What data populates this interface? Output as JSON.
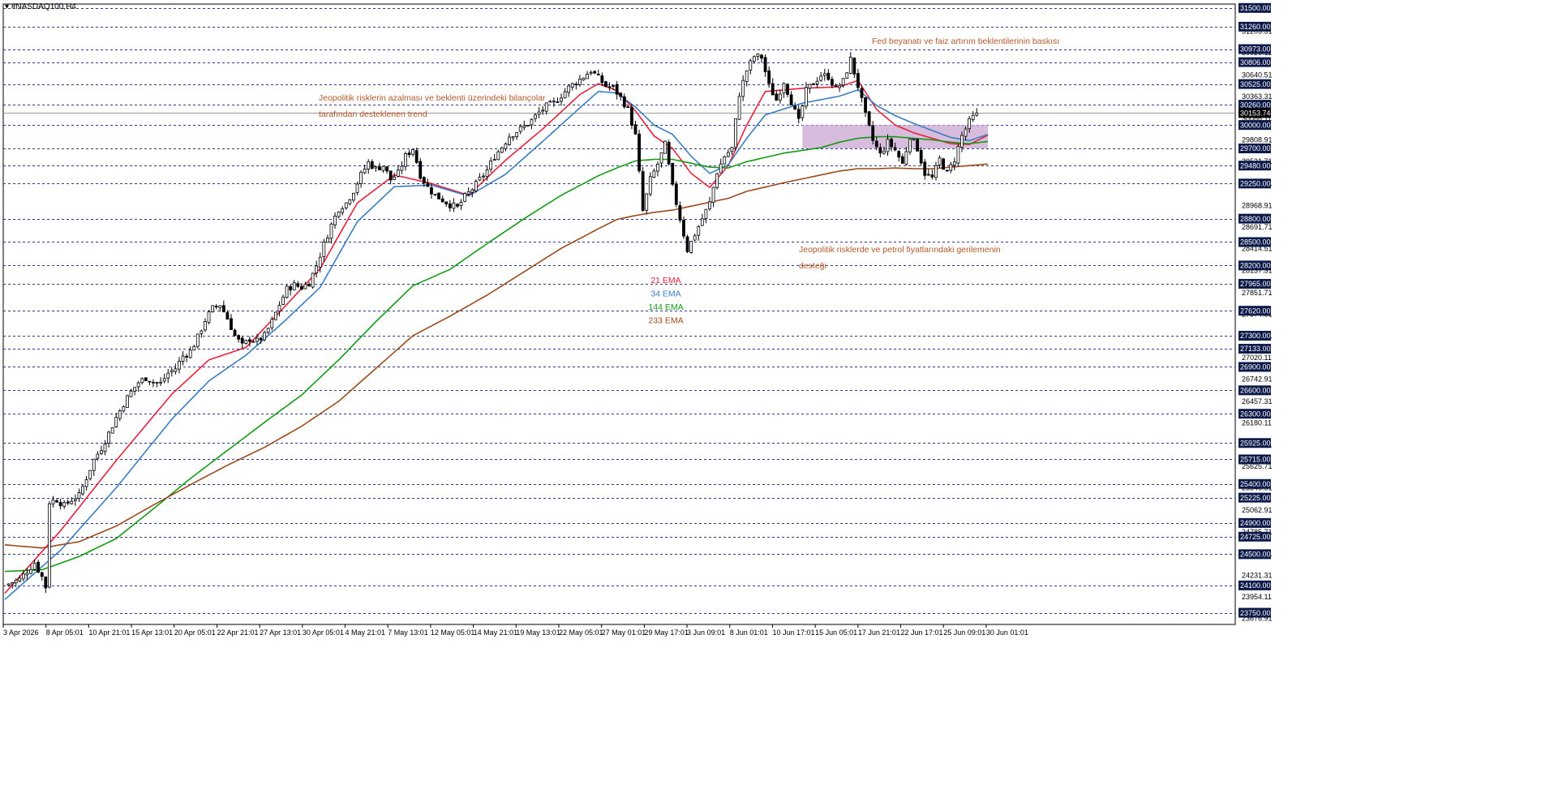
{
  "window": {
    "symbol_label": "#NASDAQ100,H4"
  },
  "colors": {
    "candle": "#000000",
    "ema21": "#e8203c",
    "ema34": "#3a7dc0",
    "ema144": "#139a13",
    "ema233": "#9c4a1c",
    "grid": "#2a3a8a",
    "zone": "#c9a6d3",
    "annotation": "#b5572a",
    "price_label_bg": "#0c1a4a",
    "price_label_text": "#ffffff"
  },
  "chart_data": {
    "type": "candlestick",
    "title": "",
    "xlabel": "",
    "ylabel": "",
    "ylim": [
      23600,
      31550
    ],
    "grid": "dashed horizontal lines at marked levels",
    "y_axis_ticks": [
      "31203.31",
      "30926.11",
      "30640.51",
      "30363.31",
      "30086.11",
      "29808.91",
      "29531.71",
      "29254.51",
      "28968.91",
      "28691.71",
      "28414.51",
      "28137.31",
      "27851.71",
      "27574.51",
      "27297.31",
      "27020.11",
      "26742.91",
      "26457.31",
      "26180.11",
      "25902.91",
      "25625.71",
      "25348.51",
      "25062.91",
      "24785.71",
      "24508.51",
      "24231.31",
      "23954.11",
      "23676.91"
    ],
    "marked_levels": [
      "31500.00",
      "31260.00",
      "30973.00",
      "30806.00",
      "30525.00",
      "30260.00",
      "30000.00",
      "29700.00",
      "29480.00",
      "29250.00",
      "28800.00",
      "28500.00",
      "28200.00",
      "27965.00",
      "27620.00",
      "27300.00",
      "27133.00",
      "26900.00",
      "26600.00",
      "26300.00",
      "25925.00",
      "25715.00",
      "25400.00",
      "25225.00",
      "24900.00",
      "24725.00",
      "24500.00",
      "24100.00",
      "23750.00"
    ],
    "current_price": "30153.74",
    "current_price_value": 30153.74,
    "x_ticks": [
      "3 Apr 2026",
      "8 Apr 05:01",
      "10 Apr 21:01",
      "15 Apr 13:01",
      "20 Apr 05:01",
      "22 Apr 21:01",
      "27 Apr 13:01",
      "30 Apr 05:01",
      "4 May 21:01",
      "7 May 13:01",
      "12 May 05:01",
      "14 May 21:01",
      "19 May 13:01",
      "22 May 05:01",
      "27 May 01:01",
      "29 May 17:01",
      "3 Jun 09:01",
      "8 Jun 01:01",
      "10 Jun 17:01",
      "15 Jun 05:01",
      "17 Jun 21:01",
      "22 Jun 17:01",
      "25 Jun 09:01",
      "30 Jun 01:01"
    ],
    "price_path": [
      [
        0,
        24100
      ],
      [
        4,
        24180
      ],
      [
        8,
        24390
      ],
      [
        10,
        24210
      ],
      [
        11,
        24080
      ],
      [
        12,
        25170
      ],
      [
        14,
        25200
      ],
      [
        16,
        25120
      ],
      [
        18,
        25200
      ],
      [
        20,
        25250
      ],
      [
        22,
        25480
      ],
      [
        24,
        25710
      ],
      [
        26,
        25860
      ],
      [
        28,
        26050
      ],
      [
        30,
        26250
      ],
      [
        32,
        26430
      ],
      [
        34,
        26580
      ],
      [
        36,
        26700
      ],
      [
        38,
        26760
      ],
      [
        40,
        26710
      ],
      [
        42,
        26690
      ],
      [
        44,
        26820
      ],
      [
        46,
        26880
      ],
      [
        48,
        27040
      ],
      [
        50,
        27100
      ],
      [
        52,
        27280
      ],
      [
        54,
        27500
      ],
      [
        56,
        27650
      ],
      [
        58,
        27700
      ],
      [
        60,
        27520
      ],
      [
        62,
        27300
      ],
      [
        64,
        27170
      ],
      [
        66,
        27260
      ],
      [
        68,
        27230
      ],
      [
        70,
        27300
      ],
      [
        72,
        27480
      ],
      [
        74,
        27700
      ],
      [
        76,
        27900
      ],
      [
        78,
        27950
      ],
      [
        80,
        27920
      ],
      [
        82,
        27980
      ],
      [
        84,
        28200
      ],
      [
        86,
        28470
      ],
      [
        88,
        28720
      ],
      [
        90,
        28930
      ],
      [
        92,
        29000
      ],
      [
        94,
        29160
      ],
      [
        96,
        29360
      ],
      [
        98,
        29520
      ],
      [
        100,
        29440
      ],
      [
        102,
        29480
      ],
      [
        104,
        29300
      ],
      [
        106,
        29380
      ],
      [
        108,
        29600
      ],
      [
        110,
        29700
      ],
      [
        112,
        29360
      ],
      [
        114,
        29200
      ],
      [
        116,
        29100
      ],
      [
        118,
        29040
      ],
      [
        120,
        28980
      ],
      [
        122,
        28940
      ],
      [
        124,
        29080
      ],
      [
        126,
        29180
      ],
      [
        128,
        29300
      ],
      [
        130,
        29420
      ],
      [
        132,
        29600
      ],
      [
        134,
        29720
      ],
      [
        136,
        29860
      ],
      [
        138,
        29920
      ],
      [
        140,
        29980
      ],
      [
        142,
        30060
      ],
      [
        144,
        30160
      ],
      [
        146,
        30240
      ],
      [
        148,
        30280
      ],
      [
        150,
        30380
      ],
      [
        152,
        30480
      ],
      [
        154,
        30550
      ],
      [
        156,
        30620
      ],
      [
        158,
        30700
      ],
      [
        160,
        30600
      ],
      [
        162,
        30500
      ],
      [
        164,
        30480
      ],
      [
        166,
        30350
      ],
      [
        168,
        30200
      ],
      [
        170,
        29860
      ],
      [
        172,
        28900
      ],
      [
        174,
        29300
      ],
      [
        176,
        29500
      ],
      [
        178,
        29750
      ],
      [
        180,
        29200
      ],
      [
        182,
        28800
      ],
      [
        184,
        28400
      ],
      [
        186,
        28600
      ],
      [
        188,
        28800
      ],
      [
        190,
        29000
      ],
      [
        192,
        29400
      ],
      [
        194,
        29600
      ],
      [
        196,
        29700
      ],
      [
        198,
        30400
      ],
      [
        200,
        30700
      ],
      [
        202,
        30880
      ],
      [
        204,
        30870
      ],
      [
        206,
        30500
      ],
      [
        208,
        30320
      ],
      [
        210,
        30560
      ],
      [
        212,
        30300
      ],
      [
        214,
        30040
      ],
      [
        216,
        30440
      ],
      [
        218,
        30540
      ],
      [
        220,
        30640
      ],
      [
        222,
        30620
      ],
      [
        224,
        30460
      ],
      [
        226,
        30560
      ],
      [
        228,
        30840
      ],
      [
        230,
        30500
      ],
      [
        232,
        30120
      ],
      [
        234,
        29800
      ],
      [
        236,
        29620
      ],
      [
        238,
        29780
      ],
      [
        240,
        29680
      ],
      [
        242,
        29500
      ],
      [
        244,
        29860
      ],
      [
        246,
        29700
      ],
      [
        248,
        29380
      ],
      [
        250,
        29320
      ],
      [
        252,
        29560
      ],
      [
        254,
        29380
      ],
      [
        256,
        29560
      ],
      [
        258,
        29860
      ],
      [
        260,
        30040
      ],
      [
        262,
        30153.74
      ]
    ],
    "series": [
      {
        "name": "21 EMA",
        "values": [
          [
            0,
            24000
          ],
          [
            15,
            24800
          ],
          [
            30,
            25700
          ],
          [
            45,
            26550
          ],
          [
            55,
            26990
          ],
          [
            65,
            27150
          ],
          [
            75,
            27650
          ],
          [
            85,
            28160
          ],
          [
            95,
            29000
          ],
          [
            105,
            29360
          ],
          [
            115,
            29250
          ],
          [
            125,
            29100
          ],
          [
            135,
            29550
          ],
          [
            145,
            29950
          ],
          [
            155,
            30390
          ],
          [
            160,
            30530
          ],
          [
            165,
            30440
          ],
          [
            170,
            30180
          ],
          [
            175,
            29860
          ],
          [
            180,
            29700
          ],
          [
            185,
            29380
          ],
          [
            190,
            29200
          ],
          [
            195,
            29480
          ],
          [
            200,
            30000
          ],
          [
            205,
            30430
          ],
          [
            215,
            30470
          ],
          [
            225,
            30490
          ],
          [
            230,
            30570
          ],
          [
            235,
            30200
          ],
          [
            240,
            30000
          ],
          [
            245,
            29900
          ],
          [
            250,
            29830
          ],
          [
            255,
            29760
          ],
          [
            260,
            29750
          ],
          [
            265,
            29870
          ]
        ]
      },
      {
        "name": "34 EMA",
        "values": [
          [
            0,
            23920
          ],
          [
            15,
            24550
          ],
          [
            30,
            25350
          ],
          [
            45,
            26230
          ],
          [
            55,
            26720
          ],
          [
            65,
            27050
          ],
          [
            75,
            27470
          ],
          [
            85,
            27920
          ],
          [
            95,
            28760
          ],
          [
            105,
            29210
          ],
          [
            115,
            29230
          ],
          [
            125,
            29090
          ],
          [
            135,
            29370
          ],
          [
            145,
            29790
          ],
          [
            155,
            30220
          ],
          [
            160,
            30430
          ],
          [
            165,
            30410
          ],
          [
            170,
            30230
          ],
          [
            175,
            30000
          ],
          [
            180,
            29880
          ],
          [
            185,
            29600
          ],
          [
            190,
            29380
          ],
          [
            195,
            29490
          ],
          [
            200,
            29830
          ],
          [
            205,
            30130
          ],
          [
            215,
            30280
          ],
          [
            225,
            30370
          ],
          [
            230,
            30450
          ],
          [
            235,
            30250
          ],
          [
            240,
            30120
          ],
          [
            245,
            30020
          ],
          [
            250,
            29930
          ],
          [
            255,
            29840
          ],
          [
            260,
            29800
          ],
          [
            265,
            29880
          ]
        ]
      },
      {
        "name": "144 EMA",
        "values": [
          [
            0,
            24280
          ],
          [
            10,
            24300
          ],
          [
            20,
            24470
          ],
          [
            30,
            24700
          ],
          [
            40,
            25080
          ],
          [
            50,
            25470
          ],
          [
            60,
            25830
          ],
          [
            70,
            26190
          ],
          [
            80,
            26540
          ],
          [
            90,
            26990
          ],
          [
            100,
            27480
          ],
          [
            110,
            27940
          ],
          [
            120,
            28150
          ],
          [
            130,
            28480
          ],
          [
            140,
            28800
          ],
          [
            150,
            29100
          ],
          [
            160,
            29350
          ],
          [
            165,
            29450
          ],
          [
            170,
            29540
          ],
          [
            175,
            29560
          ],
          [
            180,
            29560
          ],
          [
            185,
            29510
          ],
          [
            190,
            29460
          ],
          [
            195,
            29450
          ],
          [
            200,
            29530
          ],
          [
            210,
            29640
          ],
          [
            220,
            29710
          ],
          [
            225,
            29780
          ],
          [
            230,
            29830
          ],
          [
            235,
            29850
          ],
          [
            240,
            29850
          ],
          [
            245,
            29830
          ],
          [
            250,
            29810
          ],
          [
            255,
            29780
          ],
          [
            260,
            29760
          ],
          [
            265,
            29790
          ]
        ]
      },
      {
        "name": "233 EMA",
        "values": [
          [
            0,
            24620
          ],
          [
            10,
            24580
          ],
          [
            20,
            24660
          ],
          [
            30,
            24860
          ],
          [
            40,
            25130
          ],
          [
            50,
            25390
          ],
          [
            60,
            25640
          ],
          [
            70,
            25870
          ],
          [
            80,
            26140
          ],
          [
            90,
            26460
          ],
          [
            100,
            26880
          ],
          [
            110,
            27300
          ],
          [
            120,
            27550
          ],
          [
            130,
            27820
          ],
          [
            140,
            28120
          ],
          [
            150,
            28420
          ],
          [
            160,
            28670
          ],
          [
            165,
            28790
          ],
          [
            170,
            28840
          ],
          [
            175,
            28880
          ],
          [
            180,
            28910
          ],
          [
            185,
            28960
          ],
          [
            190,
            29010
          ],
          [
            195,
            29060
          ],
          [
            200,
            29150
          ],
          [
            210,
            29260
          ],
          [
            220,
            29360
          ],
          [
            225,
            29410
          ],
          [
            230,
            29440
          ],
          [
            235,
            29440
          ],
          [
            240,
            29450
          ],
          [
            245,
            29440
          ],
          [
            250,
            29440
          ],
          [
            255,
            29460
          ],
          [
            260,
            29480
          ],
          [
            265,
            29500
          ]
        ]
      }
    ],
    "legend": [
      "21 EMA",
      "34 EMA",
      "144 EMA",
      "233 EMA"
    ],
    "zone": {
      "x_from": 215,
      "x_to": 265,
      "y_low": 29700,
      "y_high": 30000
    },
    "annotations": [
      {
        "lines": [
          "Jeopolitik risklerin azalması ve beklenti üzerindeki bilançolar",
          "tarafından desteklenen trend"
        ]
      },
      {
        "lines": [
          "Fed beyanatı ve faiz artırım beklentilerinin baskısı"
        ]
      },
      {
        "lines": [
          "Jeopolitik risklerde ve petrol fiyatlarındaki gerilemenin",
          "desteği"
        ]
      }
    ]
  }
}
